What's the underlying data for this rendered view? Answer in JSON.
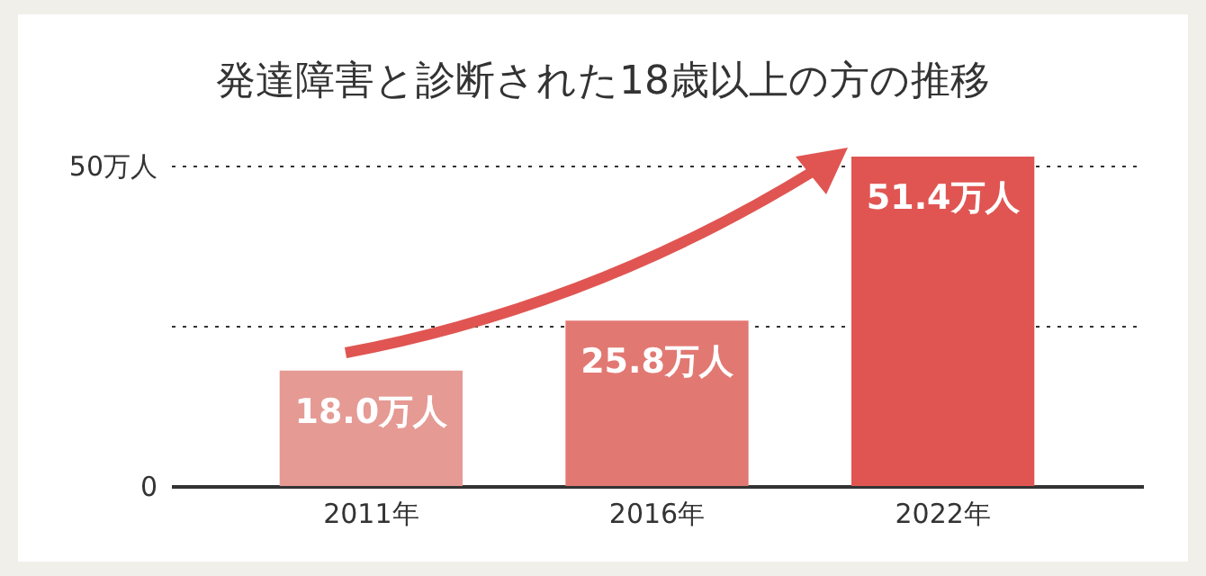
{
  "chart_data": {
    "type": "bar",
    "title": "発達障害と診断された18歳以上の方の推移",
    "categories": [
      "2011年",
      "2016年",
      "2022年"
    ],
    "values": [
      18.0,
      25.8,
      51.4
    ],
    "colors": [
      "#e59a94",
      "#e27872",
      "#e05552"
    ],
    "value_labels": [
      "18.0万人",
      "25.8万人",
      "51.4万人"
    ],
    "yticks": [
      0,
      {
        "value": 25,
        "label": null
      },
      {
        "value": 50,
        "label": "50万人"
      }
    ],
    "ylim": [
      0,
      51.4
    ],
    "grid": "y"
  }
}
